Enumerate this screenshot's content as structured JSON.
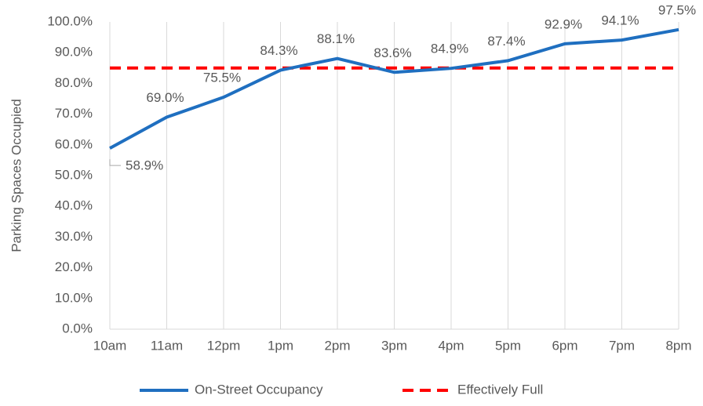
{
  "chart_data": {
    "type": "line",
    "y_label": "Parking Spaces Occupied",
    "categories": [
      "10am",
      "11am",
      "12pm",
      "1pm",
      "2pm",
      "3pm",
      "4pm",
      "5pm",
      "6pm",
      "7pm",
      "8pm"
    ],
    "series": [
      {
        "name": "On-Street Occupancy",
        "color": "#1f6fc0",
        "style": "solid",
        "values": [
          58.9,
          69.0,
          75.5,
          84.3,
          88.1,
          83.6,
          84.9,
          87.4,
          92.9,
          94.1,
          97.5
        ],
        "value_labels": [
          "58.9%",
          "69.0%",
          "75.5%",
          "84.3%",
          "88.1%",
          "83.6%",
          "84.9%",
          "87.4%",
          "92.9%",
          "94.1%",
          "97.5%"
        ]
      },
      {
        "name": "Effectively Full",
        "color": "#ff0000",
        "style": "dashed",
        "values": [
          85,
          85,
          85,
          85,
          85,
          85,
          85,
          85,
          85,
          85,
          85
        ]
      }
    ],
    "ylim": [
      0,
      100
    ],
    "yticks": [
      {
        "value": 0,
        "label": "0.0%"
      },
      {
        "value": 10,
        "label": "10.0%"
      },
      {
        "value": 20,
        "label": "20.0%"
      },
      {
        "value": 30,
        "label": "30.0%"
      },
      {
        "value": 40,
        "label": "40.0%"
      },
      {
        "value": 50,
        "label": "50.0%"
      },
      {
        "value": 60,
        "label": "60.0%"
      },
      {
        "value": 70,
        "label": "70.0%"
      },
      {
        "value": 80,
        "label": "80.0%"
      },
      {
        "value": 90,
        "label": "90.0%"
      },
      {
        "value": 100,
        "label": "100.0%"
      }
    ],
    "grid": "vertical",
    "legend": "bottom"
  }
}
